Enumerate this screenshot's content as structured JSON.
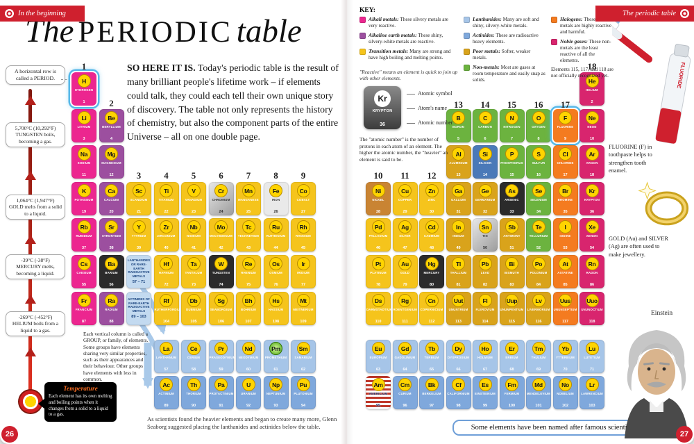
{
  "page": {
    "left_number": "26",
    "right_number": "27",
    "left_corner": "In the beginning",
    "right_corner": "The periodic table"
  },
  "title": {
    "the": "The",
    "main": "PERIODIC",
    "table": "table"
  },
  "intro": {
    "lead": "SO HERE IT IS.",
    "body": " Today's periodic table is the result of many brilliant people's lifetime work – if elements could talk, they could each tell their own unique story of discovery. The table not only represents the history of chemistry, but also the component parts of the entire Universe – all on one double page."
  },
  "thermometer": {
    "period_note": "A horizontal row is called a PERIOD.",
    "callouts": [
      {
        "temp": "5,700°C (10,292°F)",
        "text": "TUNGSTEN boils, becoming a gas."
      },
      {
        "temp": "1,064°C (1,947°F)",
        "text": "GOLD melts from a solid to a liquid."
      },
      {
        "temp": "-39°C (-38°F)",
        "text": "MERCURY melts, becoming a liquid."
      },
      {
        "temp": "-269°C (-452°F)",
        "text": "HELIUM boils from a liquid to a gas."
      }
    ],
    "temperature_box": {
      "title": "Temperature",
      "text": "Each element has its own melting and boiling points when it changes from a solid to a liquid to a gas."
    }
  },
  "notes": {
    "group": "Each vertical column is called a GROUP, or family, of elements. Some groups have elements sharing very similar properties, such as their appearances and their behaviour. Other groups have elements with less in common.",
    "seaborg": "As scientists found the heavier elements and began to create many more, Glenn Seaborg suggested placing the lanthanides and actinides below the table."
  },
  "key": {
    "heading": "KEY:",
    "reactive_note": "\"Reactive\" means an element is quick to join up with other elements.",
    "columns": [
      {
        "width": 142,
        "items": [
          {
            "cat": "alkali",
            "label": "Alkali metals:",
            "desc": "These silvery metals are very reactive."
          },
          {
            "cat": "alkaline",
            "label": "Alkaline earth metals:",
            "desc": "These shiny, silvery-white metals are reactive."
          },
          {
            "cat": "transition",
            "label": "Transition metals:",
            "desc": "Many are strong and have high boiling and melting points."
          }
        ]
      },
      {
        "width": 118,
        "items": [
          {
            "cat": "lanthanide",
            "label": "Lanthanides:",
            "desc": "Many are soft and shiny, silvery-white metals."
          },
          {
            "cat": "actinide",
            "label": "Actinides:",
            "desc": "These are radioactive heavy elements."
          },
          {
            "cat": "poor",
            "label": "Poor metals:",
            "desc": "Softer, weaker metals."
          },
          {
            "cat": "nonmetal",
            "label": "Non-metals:",
            "desc": "Most are gases at room temperature and easily snap as solids."
          }
        ]
      },
      {
        "width": 92,
        "items": [
          {
            "cat": "halogen",
            "label": "Halogens:",
            "desc": "These non-metals are highly reactive and harmful."
          },
          {
            "cat": "noble",
            "label": "Noble gases:",
            "desc": "These non-metals are the least reactive of all the elements."
          },
          {
            "cat": null,
            "label": "",
            "desc": "Elements 115, 117, and 118 are not officially recognized yet."
          }
        ]
      }
    ]
  },
  "sample": {
    "symbol": "Kr",
    "name": "KRYPTON",
    "number": "36",
    "labels": [
      "Atomic symbol",
      "Atom's name",
      "Atomic number"
    ],
    "caption": "The \"atomic number\" is the number of protons in each atom of an element. The higher the atomic number, the \"heavier\" an element is said to be."
  },
  "annotations": {
    "banner": "Some elements have been named after famous scientists.",
    "fluorine": "FLUORINE (F) in toothpaste helps to strengthen tooth enamel.",
    "gold": "GOLD (Au) and SILVER (Ag) are often used to make jewellery.",
    "einstein": "Einstein",
    "toothpaste_label": "FLUORIDE"
  },
  "group_numbers": [
    "1",
    "2",
    "3",
    "4",
    "5",
    "6",
    "7",
    "8",
    "9",
    "10",
    "11",
    "12",
    "13",
    "14",
    "15",
    "16",
    "17",
    "18"
  ],
  "series_labels": {
    "lanthanides": {
      "text": "LANTHANIDES OR RARE-EARTH RADIOACTIVE METALS",
      "range": "57 – 71"
    },
    "actinides": {
      "text": "ACTINIDES OF RARE-EARTH RADIOACTIVE METALS",
      "range": "89 – 103"
    }
  },
  "category_colors": {
    "alkali": "#ec268f",
    "alkaline": "#9c4f9f",
    "transition": "#f5c41c",
    "lanthanide": "#a6c5e8",
    "actinide": "#7fa8dc",
    "poor": "#d9a31b",
    "nonmetal": "#6cb33f",
    "halogen": "#f47b20",
    "noble": "#d8256e"
  },
  "theme": {
    "red": "#cf202e",
    "circle_yellow": "#ffd400",
    "circle_border": "#b98d00",
    "arrow_blue": "#a9c9e9",
    "series_label_bg": "#c3daf0",
    "banner_border": "#6f9fd8"
  },
  "elements": [
    {
      "s": "H",
      "n": "HYDROGEN",
      "a": 1,
      "c": "alkali",
      "g": 1,
      "r": 1,
      "v": "hl"
    },
    {
      "s": "He",
      "n": "HELIUM",
      "a": 2,
      "c": "noble",
      "g": 18,
      "r": 1
    },
    {
      "s": "Li",
      "n": "LITHIUM",
      "a": 3,
      "c": "alkali",
      "g": 1,
      "r": 2
    },
    {
      "s": "Be",
      "n": "BERYLLIUM",
      "a": 4,
      "c": "alkaline",
      "g": 2,
      "r": 2
    },
    {
      "s": "B",
      "n": "BORON",
      "a": 5,
      "c": "nonmetal",
      "g": 13,
      "r": 2
    },
    {
      "s": "C",
      "n": "CARBON",
      "a": 6,
      "c": "nonmetal",
      "g": 14,
      "r": 2
    },
    {
      "s": "N",
      "n": "NITROGEN",
      "a": 7,
      "c": "nonmetal",
      "g": 15,
      "r": 2
    },
    {
      "s": "O",
      "n": "OXYGEN",
      "a": 8,
      "c": "nonmetal",
      "g": 16,
      "r": 2
    },
    {
      "s": "F",
      "n": "FLUORINE",
      "a": 9,
      "c": "halogen",
      "g": 17,
      "r": 2,
      "v": "hl"
    },
    {
      "s": "Ne",
      "n": "NEON",
      "a": 10,
      "c": "noble",
      "g": 18,
      "r": 2
    },
    {
      "s": "Na",
      "n": "SODIUM",
      "a": 11,
      "c": "alkali",
      "g": 1,
      "r": 3
    },
    {
      "s": "Mg",
      "n": "MAGNESIUM",
      "a": 12,
      "c": "alkaline",
      "g": 2,
      "r": 3
    },
    {
      "s": "Al",
      "n": "ALUMINIUM",
      "a": 13,
      "c": "poor",
      "g": 13,
      "r": 3
    },
    {
      "s": "Si",
      "n": "SILICON",
      "a": 14,
      "c": "nonmetal",
      "g": 14,
      "r": 3,
      "v": "chip"
    },
    {
      "s": "P",
      "n": "PHOSPHORUS",
      "a": 15,
      "c": "nonmetal",
      "g": 15,
      "r": 3
    },
    {
      "s": "S",
      "n": "SULFUR",
      "a": 16,
      "c": "nonmetal",
      "g": 16,
      "r": 3
    },
    {
      "s": "Cl",
      "n": "CHLORINE",
      "a": 17,
      "c": "halogen",
      "g": 17,
      "r": 3
    },
    {
      "s": "Ar",
      "n": "ARGON",
      "a": 18,
      "c": "noble",
      "g": 18,
      "r": 3
    },
    {
      "s": "K",
      "n": "POTASSIUM",
      "a": 19,
      "c": "alkali",
      "g": 1,
      "r": 4
    },
    {
      "s": "Ca",
      "n": "CALCIUM",
      "a": 20,
      "c": "alkaline",
      "g": 2,
      "r": 4
    },
    {
      "s": "Sc",
      "n": "SCANDIUM",
      "a": 21,
      "c": "transition",
      "g": 3,
      "r": 4
    },
    {
      "s": "Ti",
      "n": "TITANIUM",
      "a": 22,
      "c": "transition",
      "g": 4,
      "r": 4
    },
    {
      "s": "V",
      "n": "VANADIUM",
      "a": 23,
      "c": "transition",
      "g": 5,
      "r": 4
    },
    {
      "s": "Cr",
      "n": "CHROMIUM",
      "a": 24,
      "c": "transition",
      "g": 6,
      "r": 4,
      "v": "silver"
    },
    {
      "s": "Mn",
      "n": "MANGANESE",
      "a": 25,
      "c": "transition",
      "g": 7,
      "r": 4
    },
    {
      "s": "Fe",
      "n": "IRON",
      "a": 26,
      "c": "transition",
      "g": 8,
      "r": 4,
      "v": "light"
    },
    {
      "s": "Co",
      "n": "COBALT",
      "a": 27,
      "c": "transition",
      "g": 9,
      "r": 4
    },
    {
      "s": "Ni",
      "n": "NICKEL",
      "a": 28,
      "c": "transition",
      "g": 10,
      "r": 4,
      "v": "coins"
    },
    {
      "s": "Cu",
      "n": "COPPER",
      "a": 29,
      "c": "transition",
      "g": 11,
      "r": 4
    },
    {
      "s": "Zn",
      "n": "ZINC",
      "a": 30,
      "c": "transition",
      "g": 12,
      "r": 4
    },
    {
      "s": "Ga",
      "n": "GALLIUM",
      "a": 31,
      "c": "poor",
      "g": 13,
      "r": 4
    },
    {
      "s": "Ge",
      "n": "GERMANIUM",
      "a": 32,
      "c": "poor",
      "g": 14,
      "r": 4
    },
    {
      "s": "As",
      "n": "ARSENIC",
      "a": 33,
      "c": "nonmetal",
      "g": 15,
      "r": 4,
      "v": "dark"
    },
    {
      "s": "Se",
      "n": "SELENIUM",
      "a": 34,
      "c": "nonmetal",
      "g": 16,
      "r": 4
    },
    {
      "s": "Br",
      "n": "BROMINE",
      "a": 35,
      "c": "halogen",
      "g": 17,
      "r": 4
    },
    {
      "s": "Kr",
      "n": "KRYPTON",
      "a": 36,
      "c": "noble",
      "g": 18,
      "r": 4
    },
    {
      "s": "Rb",
      "n": "RUBIDIUM",
      "a": 37,
      "c": "alkali",
      "g": 1,
      "r": 5
    },
    {
      "s": "Sr",
      "n": "STRONTIUM",
      "a": 38,
      "c": "alkaline",
      "g": 2,
      "r": 5
    },
    {
      "s": "Y",
      "n": "YTTRIUM",
      "a": 39,
      "c": "transition",
      "g": 3,
      "r": 5
    },
    {
      "s": "Zr",
      "n": "ZIRCONIUM",
      "a": 40,
      "c": "transition",
      "g": 4,
      "r": 5
    },
    {
      "s": "Nb",
      "n": "NIOBIUM",
      "a": 41,
      "c": "transition",
      "g": 5,
      "r": 5
    },
    {
      "s": "Mo",
      "n": "MOLYBDENUM",
      "a": 42,
      "c": "transition",
      "g": 6,
      "r": 5
    },
    {
      "s": "Tc",
      "n": "TECHNETIUM",
      "a": 43,
      "c": "transition",
      "g": 7,
      "r": 5
    },
    {
      "s": "Ru",
      "n": "RUTHENIUM",
      "a": 44,
      "c": "transition",
      "g": 8,
      "r": 5
    },
    {
      "s": "Rh",
      "n": "RHODIUM",
      "a": 45,
      "c": "transition",
      "g": 9,
      "r": 5
    },
    {
      "s": "Pd",
      "n": "PALLADIUM",
      "a": 46,
      "c": "transition",
      "g": 10,
      "r": 5
    },
    {
      "s": "Ag",
      "n": "SILVER",
      "a": 47,
      "c": "transition",
      "g": 11,
      "r": 5
    },
    {
      "s": "Cd",
      "n": "CADMIUM",
      "a": 48,
      "c": "transition",
      "g": 12,
      "r": 5
    },
    {
      "s": "In",
      "n": "INDIUM",
      "a": 49,
      "c": "poor",
      "g": 13,
      "r": 5
    },
    {
      "s": "Sn",
      "n": "TIN",
      "a": 50,
      "c": "poor",
      "g": 14,
      "r": 5,
      "v": "silver"
    },
    {
      "s": "Sb",
      "n": "ANTIMONY",
      "a": 51,
      "c": "poor",
      "g": 15,
      "r": 5
    },
    {
      "s": "Te",
      "n": "TELLURIUM",
      "a": 52,
      "c": "nonmetal",
      "g": 16,
      "r": 5
    },
    {
      "s": "I",
      "n": "IODINE",
      "a": 53,
      "c": "halogen",
      "g": 17,
      "r": 5
    },
    {
      "s": "Xe",
      "n": "XENON",
      "a": 54,
      "c": "noble",
      "g": 18,
      "r": 5
    },
    {
      "s": "Cs",
      "n": "CAESIUM",
      "a": 55,
      "c": "alkali",
      "g": 1,
      "r": 6
    },
    {
      "s": "Ba",
      "n": "BARIUM",
      "a": 56,
      "c": "alkaline",
      "g": 2,
      "r": 6,
      "v": "dark"
    },
    {
      "s": "Hf",
      "n": "HAFNIUM",
      "a": 72,
      "c": "transition",
      "g": 4,
      "r": 6
    },
    {
      "s": "Ta",
      "n": "TANTALUM",
      "a": 73,
      "c": "transition",
      "g": 5,
      "r": 6
    },
    {
      "s": "W",
      "n": "TUNGSTEN",
      "a": 74,
      "c": "transition",
      "g": 6,
      "r": 6,
      "v": "dark"
    },
    {
      "s": "Re",
      "n": "RHENIUM",
      "a": 75,
      "c": "transition",
      "g": 7,
      "r": 6
    },
    {
      "s": "Os",
      "n": "OSMIUM",
      "a": 76,
      "c": "transition",
      "g": 8,
      "r": 6
    },
    {
      "s": "Ir",
      "n": "IRIDIUM",
      "a": 77,
      "c": "transition",
      "g": 9,
      "r": 6
    },
    {
      "s": "Pt",
      "n": "PLATINUM",
      "a": 78,
      "c": "transition",
      "g": 10,
      "r": 6
    },
    {
      "s": "Au",
      "n": "GOLD",
      "a": 79,
      "c": "transition",
      "g": 11,
      "r": 6
    },
    {
      "s": "Hg",
      "n": "MERCURY",
      "a": 80,
      "c": "transition",
      "g": 12,
      "r": 6,
      "v": "dark"
    },
    {
      "s": "Tl",
      "n": "THALLIUM",
      "a": 81,
      "c": "poor",
      "g": 13,
      "r": 6
    },
    {
      "s": "Pb",
      "n": "LEAD",
      "a": 82,
      "c": "poor",
      "g": 14,
      "r": 6
    },
    {
      "s": "Bi",
      "n": "BISMUTH",
      "a": 83,
      "c": "poor",
      "g": 15,
      "r": 6
    },
    {
      "s": "Po",
      "n": "POLONIUM",
      "a": 84,
      "c": "poor",
      "g": 16,
      "r": 6
    },
    {
      "s": "At",
      "n": "ASTATINE",
      "a": 85,
      "c": "halogen",
      "g": 17,
      "r": 6
    },
    {
      "s": "Rn",
      "n": "RADON",
      "a": 86,
      "c": "noble",
      "g": 18,
      "r": 6
    },
    {
      "s": "Fr",
      "n": "FRANCIUM",
      "a": 87,
      "c": "alkali",
      "g": 1,
      "r": 7
    },
    {
      "s": "Ra",
      "n": "RADIUM",
      "a": 88,
      "c": "alkaline",
      "g": 2,
      "r": 7
    },
    {
      "s": "Rf",
      "n": "RUTHERFORDIUM",
      "a": 104,
      "c": "transition",
      "g": 4,
      "r": 7
    },
    {
      "s": "Db",
      "n": "DUBNIUM",
      "a": 105,
      "c": "transition",
      "g": 5,
      "r": 7
    },
    {
      "s": "Sg",
      "n": "SEABORGIUM",
      "a": 106,
      "c": "transition",
      "g": 6,
      "r": 7
    },
    {
      "s": "Bh",
      "n": "BOHRIUM",
      "a": 107,
      "c": "transition",
      "g": 7,
      "r": 7
    },
    {
      "s": "Hs",
      "n": "HASSIUM",
      "a": 108,
      "c": "transition",
      "g": 8,
      "r": 7
    },
    {
      "s": "Mt",
      "n": "MEITNERIUM",
      "a": 109,
      "c": "transition",
      "g": 9,
      "r": 7
    },
    {
      "s": "Ds",
      "n": "DARMSTADTIUM",
      "a": 110,
      "c": "transition",
      "g": 10,
      "r": 7
    },
    {
      "s": "Rg",
      "n": "ROENTGENIUM",
      "a": 111,
      "c": "transition",
      "g": 11,
      "r": 7
    },
    {
      "s": "Cn",
      "n": "COPERNICIUM",
      "a": 112,
      "c": "transition",
      "g": 12,
      "r": 7
    },
    {
      "s": "Uut",
      "n": "UNUNTRIUM",
      "a": 113,
      "c": "poor",
      "g": 13,
      "r": 7
    },
    {
      "s": "Fl",
      "n": "FLEROVIUM",
      "a": 114,
      "c": "poor",
      "g": 14,
      "r": 7
    },
    {
      "s": "Uup",
      "n": "UNUNPENTIUM",
      "a": 115,
      "c": "poor",
      "g": 15,
      "r": 7
    },
    {
      "s": "Lv",
      "n": "LIVERMORIUM",
      "a": 116,
      "c": "poor",
      "g": 16,
      "r": 7
    },
    {
      "s": "Uus",
      "n": "UNUNSEPTIUM",
      "a": 117,
      "c": "halogen",
      "g": 17,
      "r": 7
    },
    {
      "s": "Uuo",
      "n": "UNUNOCTIUM",
      "a": 118,
      "c": "noble",
      "g": 18,
      "r": 7
    },
    {
      "s": "La",
      "n": "LANTHANUM",
      "a": 57,
      "c": "lanthanide",
      "g": 4,
      "r": 8
    },
    {
      "s": "Ce",
      "n": "CERIUM",
      "a": 58,
      "c": "lanthanide",
      "g": 5,
      "r": 8
    },
    {
      "s": "Pr",
      "n": "PRASEODYMIUM",
      "a": 59,
      "c": "lanthanide",
      "g": 6,
      "r": 8
    },
    {
      "s": "Nd",
      "n": "NEODYMIUM",
      "a": 60,
      "c": "lanthanide",
      "g": 7,
      "r": 8
    },
    {
      "s": "Pm",
      "n": "PROMETHIUM",
      "a": 61,
      "c": "lanthanide",
      "g": 8,
      "r": 8,
      "v": "glow"
    },
    {
      "s": "Sm",
      "n": "SAMARIUM",
      "a": 62,
      "c": "lanthanide",
      "g": 9,
      "r": 8
    },
    {
      "s": "Eu",
      "n": "EUROPIUM",
      "a": 63,
      "c": "lanthanide",
      "g": 10,
      "r": 8
    },
    {
      "s": "Gd",
      "n": "GADOLINIUM",
      "a": 64,
      "c": "lanthanide",
      "g": 11,
      "r": 8
    },
    {
      "s": "Tb",
      "n": "TERBIUM",
      "a": 65,
      "c": "lanthanide",
      "g": 12,
      "r": 8
    },
    {
      "s": "Dy",
      "n": "DYSPROSIUM",
      "a": 66,
      "c": "lanthanide",
      "g": 13,
      "r": 8
    },
    {
      "s": "Ho",
      "n": "HOLMIUM",
      "a": 67,
      "c": "lanthanide",
      "g": 14,
      "r": 8
    },
    {
      "s": "Er",
      "n": "ERBIUM",
      "a": 68,
      "c": "lanthanide",
      "g": 15,
      "r": 8
    },
    {
      "s": "Tm",
      "n": "THULIUM",
      "a": 69,
      "c": "lanthanide",
      "g": 16,
      "r": 8
    },
    {
      "s": "Yb",
      "n": "YTTERBIUM",
      "a": 70,
      "c": "lanthanide",
      "g": 17,
      "r": 8
    },
    {
      "s": "Lu",
      "n": "LUTETIUM",
      "a": 71,
      "c": "lanthanide",
      "g": 18,
      "r": 8
    },
    {
      "s": "Ac",
      "n": "ACTINIUM",
      "a": 89,
      "c": "actinide",
      "g": 4,
      "r": 9
    },
    {
      "s": "Th",
      "n": "THORIUM",
      "a": 90,
      "c": "actinide",
      "g": 5,
      "r": 9
    },
    {
      "s": "Pa",
      "n": "PROTACTINIUM",
      "a": 91,
      "c": "actinide",
      "g": 6,
      "r": 9
    },
    {
      "s": "U",
      "n": "URANIUM",
      "a": 92,
      "c": "actinide",
      "g": 7,
      "r": 9
    },
    {
      "s": "Np",
      "n": "NEPTUNIUM",
      "a": 93,
      "c": "actinide",
      "g": 8,
      "r": 9
    },
    {
      "s": "Pu",
      "n": "PLUTONIUM",
      "a": 94,
      "c": "actinide",
      "g": 9,
      "r": 9
    },
    {
      "s": "Am",
      "n": "AMERICIUM",
      "a": 95,
      "c": "actinide",
      "g": 10,
      "r": 9,
      "v": "flag"
    },
    {
      "s": "Cm",
      "n": "CURIUM",
      "a": 96,
      "c": "actinide",
      "g": 11,
      "r": 9
    },
    {
      "s": "Bk",
      "n": "BERKELIUM",
      "a": 97,
      "c": "actinide",
      "g": 12,
      "r": 9
    },
    {
      "s": "Cf",
      "n": "CALIFORNIUM",
      "a": 98,
      "c": "actinide",
      "g": 13,
      "r": 9
    },
    {
      "s": "Es",
      "n": "EINSTEINIUM",
      "a": 99,
      "c": "actinide",
      "g": 14,
      "r": 9
    },
    {
      "s": "Fm",
      "n": "FERMIUM",
      "a": 100,
      "c": "actinide",
      "g": 15,
      "r": 9
    },
    {
      "s": "Md",
      "n": "MENDELEVIUM",
      "a": 101,
      "c": "actinide",
      "g": 16,
      "r": 9
    },
    {
      "s": "No",
      "n": "NOBELIUM",
      "a": 102,
      "c": "actinide",
      "g": 17,
      "r": 9
    },
    {
      "s": "Lr",
      "n": "LAWRENCIUM",
      "a": 103,
      "c": "actinide",
      "g": 18,
      "r": 9
    }
  ]
}
